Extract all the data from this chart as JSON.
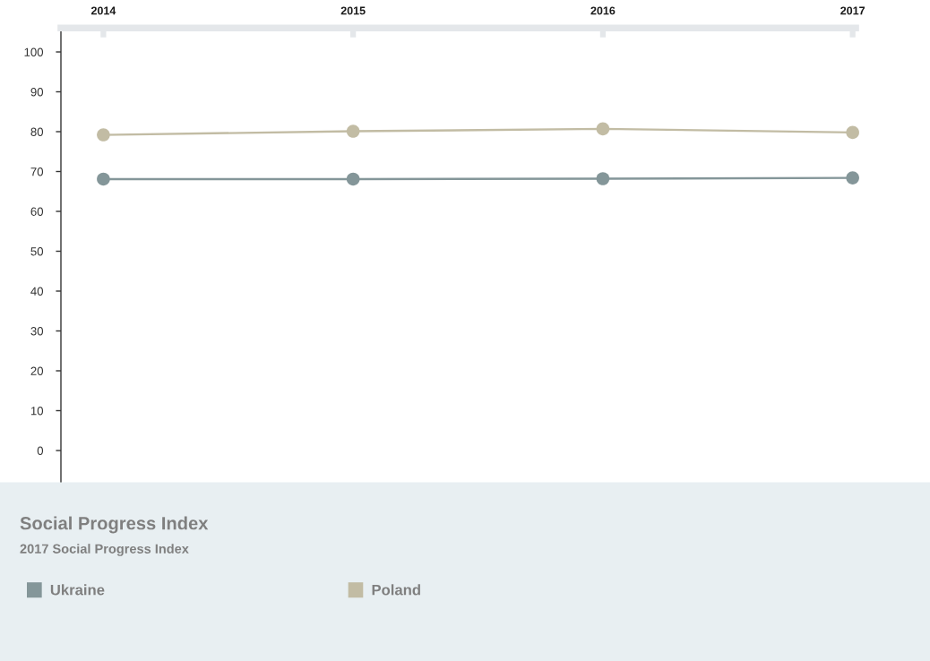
{
  "chart_data": {
    "type": "line",
    "title": "Social Progress Index",
    "subtitle": "2017 Social Progress Index",
    "categories": [
      "2014",
      "2015",
      "2016",
      "2017"
    ],
    "series": [
      {
        "name": "Ukraine",
        "color": "#849699",
        "values": [
          68.1,
          68.1,
          68.2,
          68.4
        ]
      },
      {
        "name": "Poland",
        "color": "#c2bca4",
        "values": [
          79.2,
          80.1,
          80.7,
          79.8
        ]
      }
    ],
    "ylim": [
      -8,
      106
    ],
    "yticks": [
      0,
      10,
      20,
      30,
      40,
      50,
      60,
      70,
      80,
      90,
      100
    ],
    "grid": false,
    "legend": "bottom",
    "marker": "circle",
    "line_style": "solid"
  }
}
